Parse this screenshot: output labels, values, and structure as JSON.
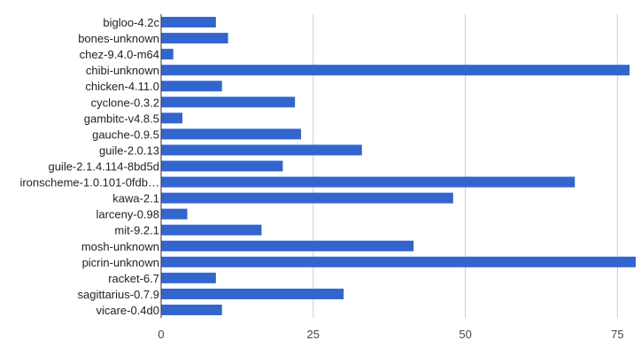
{
  "chart_data": {
    "type": "bar",
    "orientation": "horizontal",
    "title": "",
    "xlabel": "",
    "ylabel": "",
    "categories": [
      "bigloo-4.2c",
      "bones-unknown",
      "chez-9.4.0-m64",
      "chibi-unknown",
      "chicken-4.11.0",
      "cyclone-0.3.2",
      "gambitc-v4.8.5",
      "gauche-0.9.5",
      "guile-2.0.13",
      "guile-2.1.4.114-8bd5d",
      "ironscheme-1.0.101-0fdb…",
      "kawa-2.1",
      "larceny-0.98",
      "mit-9.2.1",
      "mosh-unknown",
      "picrin-unknown",
      "racket-6.7",
      "sagittarius-0.7.9",
      "vicare-0.4d0"
    ],
    "values": [
      9,
      11,
      2,
      77,
      10,
      22,
      3.5,
      23,
      33,
      20,
      68,
      48,
      4.3,
      16.5,
      41.5,
      78,
      9,
      30,
      10
    ],
    "xlim": [
      0,
      78
    ],
    "xticks": [
      "0",
      "25",
      "50",
      "75"
    ],
    "grid": true,
    "legend": "none",
    "bar_color": "#3366cc"
  }
}
